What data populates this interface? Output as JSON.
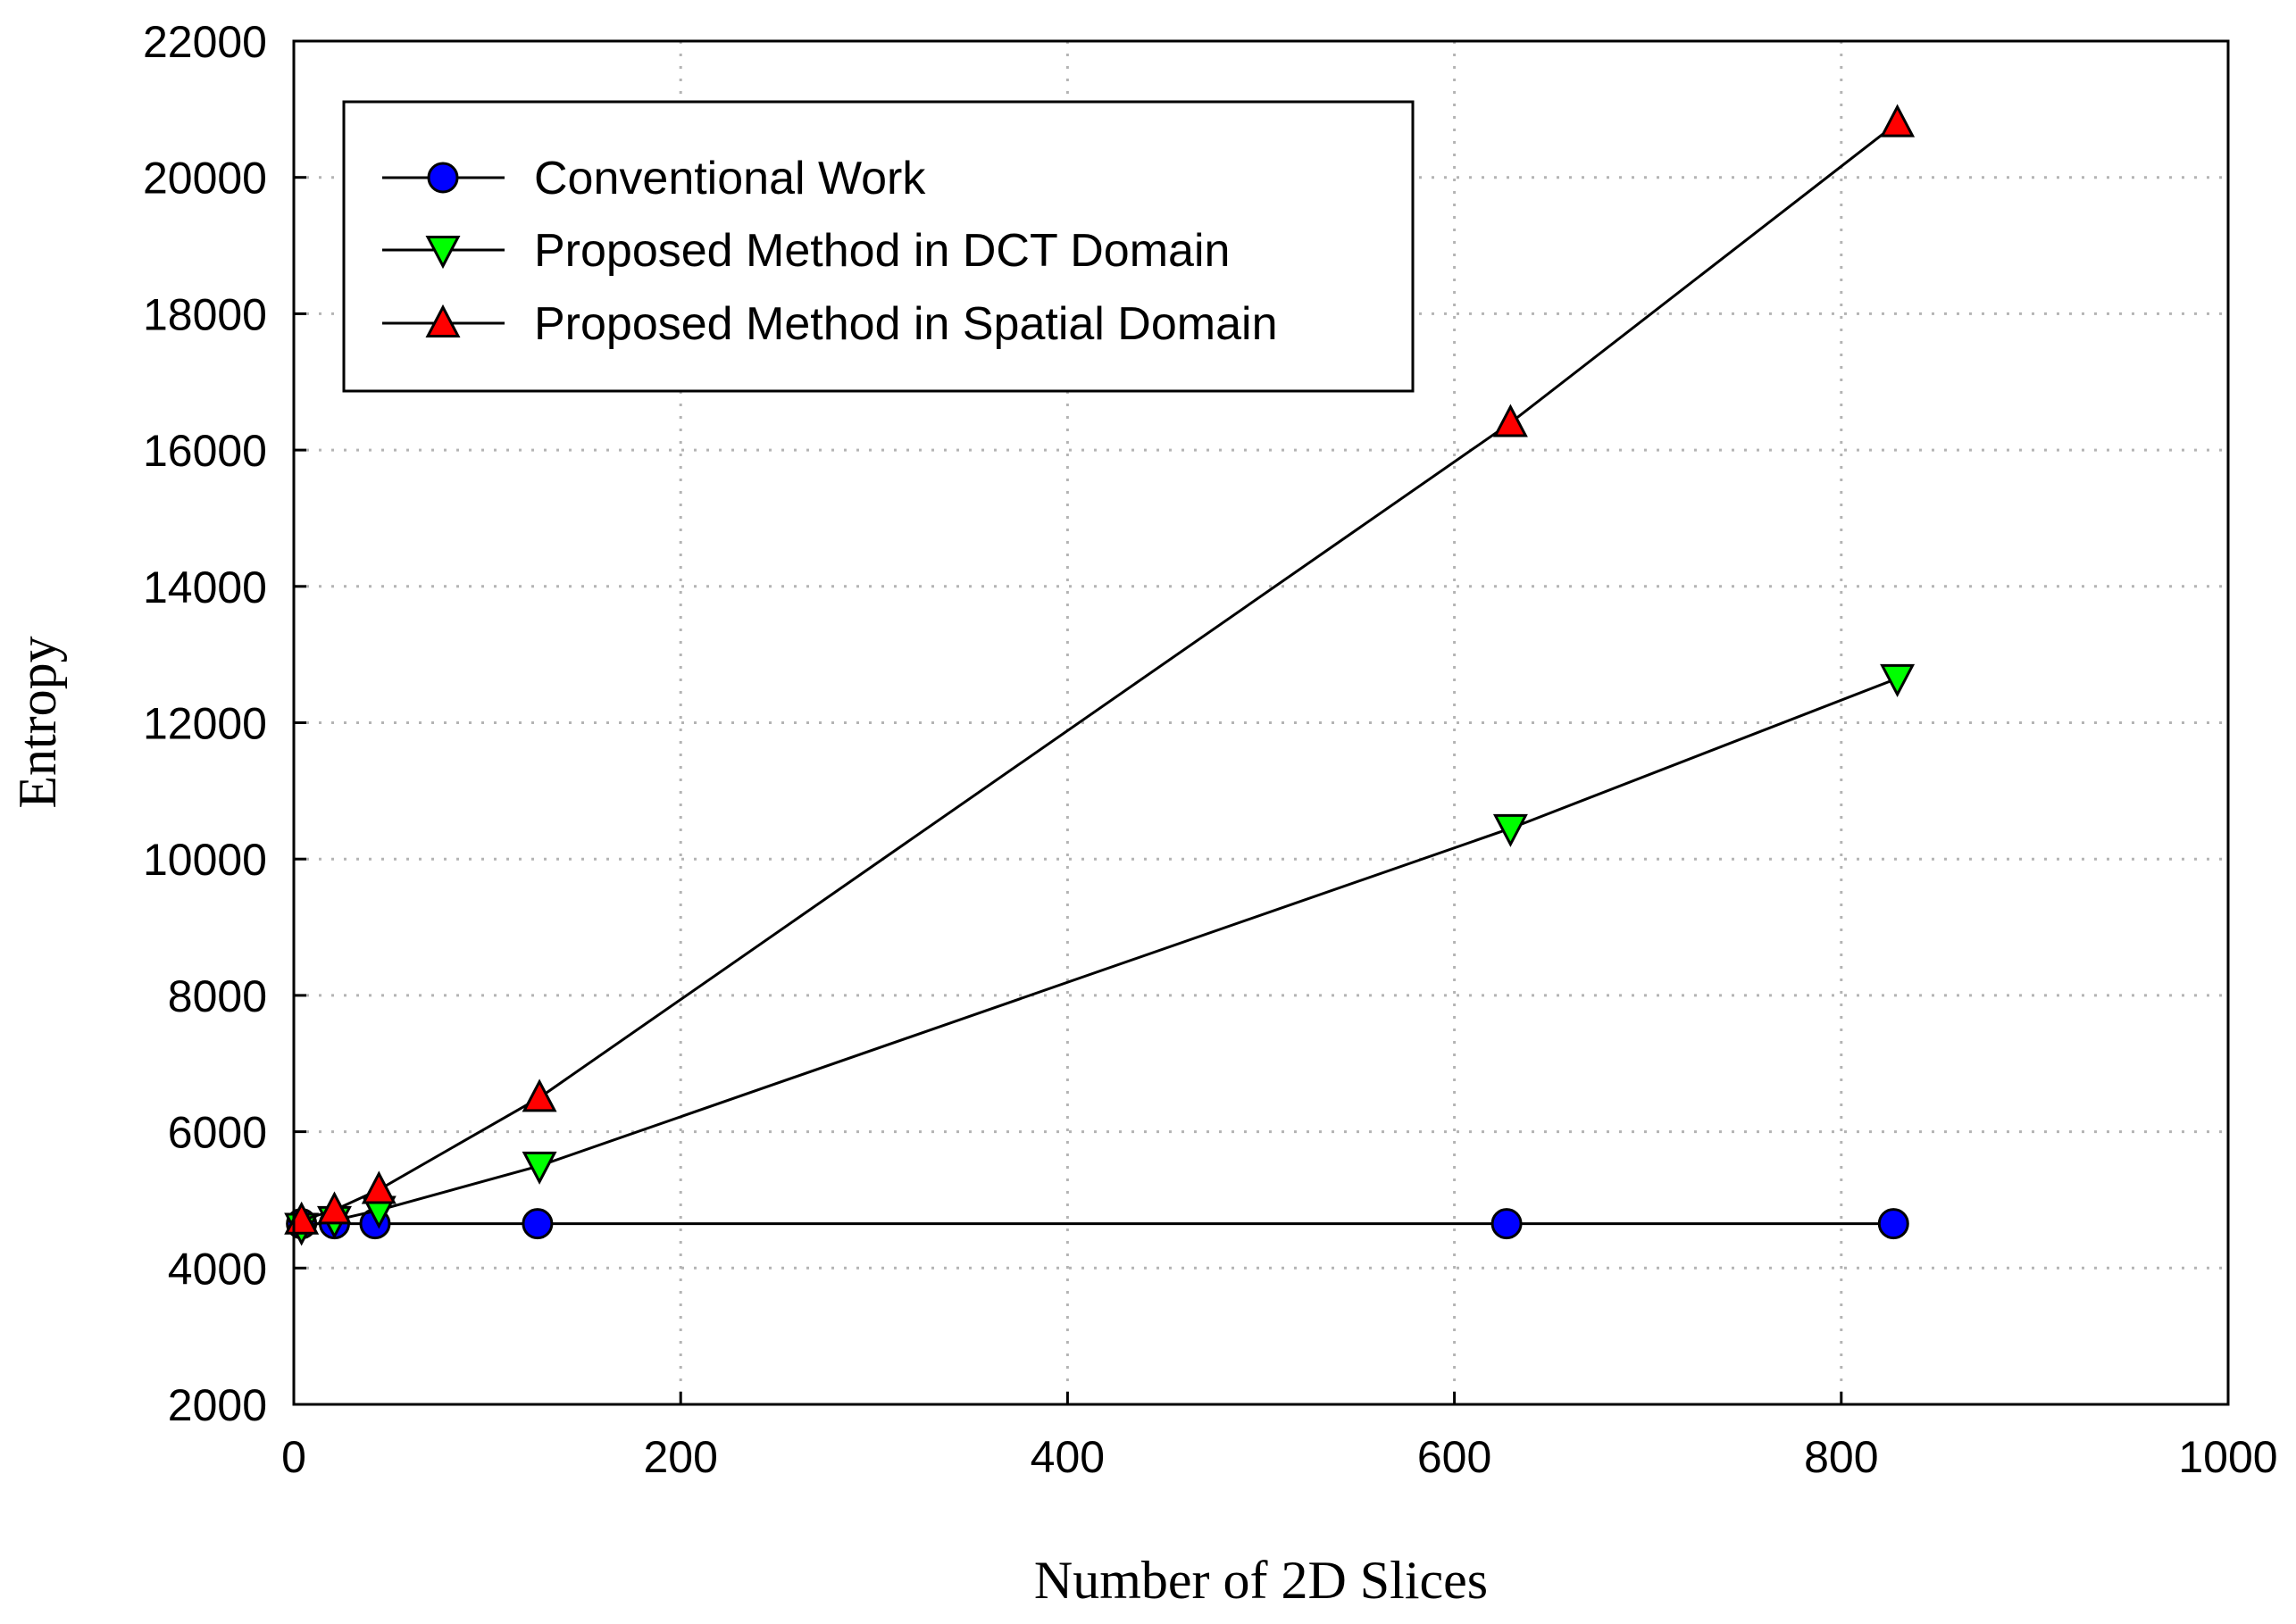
{
  "chart_data": {
    "type": "line",
    "xlabel": "Number of 2D Slices",
    "ylabel": "Entropy",
    "xlim": [
      0,
      1000
    ],
    "ylim": [
      2000,
      22000
    ],
    "xticks": [
      0,
      200,
      400,
      600,
      800,
      1000
    ],
    "yticks": [
      2000,
      4000,
      6000,
      8000,
      10000,
      12000,
      14000,
      16000,
      18000,
      20000,
      22000
    ],
    "grid": true,
    "legend_position": "top-left",
    "series": [
      {
        "name": "Conventional Work",
        "marker": "circle",
        "color": "#0000ff",
        "x": [
          4,
          21,
          42,
          126,
          627,
          827
        ],
        "y": [
          4650,
          4650,
          4650,
          4650,
          4650,
          4650
        ]
      },
      {
        "name": "Proposed Method in DCT Domain",
        "marker": "triangle-down",
        "color": "#00ff00",
        "x": [
          4,
          21,
          44,
          127,
          629,
          829
        ],
        "y": [
          4600,
          4700,
          4850,
          5500,
          10450,
          12650
        ]
      },
      {
        "name": "Proposed Method in Spatial Domain",
        "marker": "triangle-up",
        "color": "#ff0000",
        "x": [
          4,
          21,
          44,
          127,
          629,
          829
        ],
        "y": [
          4700,
          4850,
          5150,
          6500,
          16400,
          20800
        ]
      }
    ]
  }
}
